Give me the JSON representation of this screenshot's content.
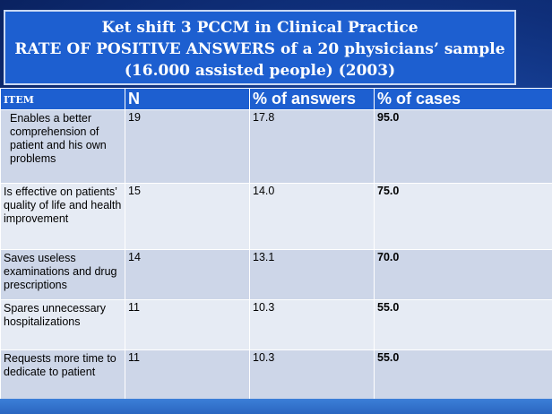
{
  "title": {
    "line1": "Ket shift 3  PCCM  in Clinical Practice",
    "line2": "RATE OF POSITIVE ANSWERS  of a 20 physicians’ sample",
    "line3": "(16.000 assisted people)  (2003)"
  },
  "table": {
    "headers": [
      "ITEM",
      "N",
      "% of answers",
      "% of cases"
    ],
    "rows": [
      {
        "item": "Enables a better comprehension of patient and his own problems",
        "n": "19",
        "answers": "17.8",
        "cases": "95.0"
      },
      {
        "item": "Is effective  on patients’ quality of life and health improvement",
        "n": "15",
        "answers": "14.0",
        "cases": "75.0"
      },
      {
        "item": "Saves  useless examinations  and drug prescriptions",
        "n": "14",
        "answers": "13.1",
        "cases": "70.0"
      },
      {
        "item": "Spares unnecessary hospitalizations",
        "n": "11",
        "answers": "10.3",
        "cases": "55.0"
      },
      {
        "item": "Requests more time to dedicate to patient",
        "n": "11",
        "answers": "10.3",
        "cases": "55.0"
      }
    ]
  }
}
